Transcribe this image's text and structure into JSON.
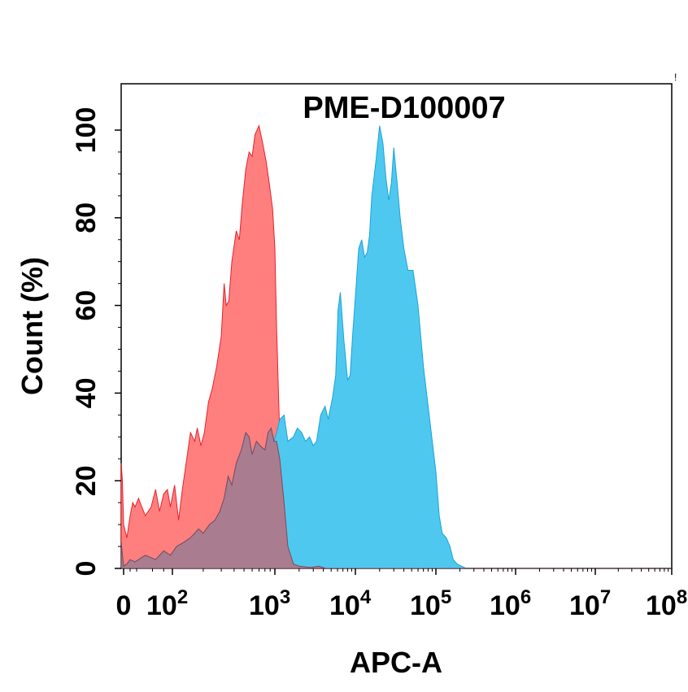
{
  "chart_data": {
    "type": "area",
    "title": "PME-D100007",
    "xlabel": "APC-A",
    "ylabel": "Count  (%)",
    "x_scale": "biexponential",
    "xlim": [
      -20,
      100000000
    ],
    "ylim": [
      0,
      100
    ],
    "x_ticks": [
      {
        "value": 0,
        "base": "0",
        "exp": ""
      },
      {
        "value": 100,
        "base": "10",
        "exp": "2"
      },
      {
        "value": 1000,
        "base": "10",
        "exp": "3"
      },
      {
        "value": 10000,
        "base": "10",
        "exp": "4"
      },
      {
        "value": 100000,
        "base": "10",
        "exp": "5"
      },
      {
        "value": 1000000,
        "base": "10",
        "exp": "6"
      },
      {
        "value": 10000000,
        "base": "10",
        "exp": "7"
      },
      {
        "value": 100000000,
        "base": "10",
        "exp": "8"
      }
    ],
    "y_ticks": [
      0,
      20,
      40,
      60,
      80,
      100
    ],
    "grid": false,
    "legend": "none",
    "series": [
      {
        "color": "#ff7f7f",
        "stroke": "#e8202a",
        "points": [
          [
            -20,
            24
          ],
          [
            -10,
            20
          ],
          [
            0,
            10
          ],
          [
            10,
            7
          ],
          [
            20,
            12
          ],
          [
            28,
            15
          ],
          [
            35,
            14
          ],
          [
            42,
            16
          ],
          [
            50,
            12
          ],
          [
            58,
            14
          ],
          [
            65,
            18
          ],
          [
            72,
            13
          ],
          [
            80,
            17
          ],
          [
            88,
            18
          ],
          [
            95,
            14
          ],
          [
            105,
            19
          ],
          [
            115,
            11
          ],
          [
            125,
            18
          ],
          [
            140,
            26
          ],
          [
            150,
            31
          ],
          [
            165,
            29
          ],
          [
            175,
            32
          ],
          [
            190,
            28
          ],
          [
            205,
            31
          ],
          [
            225,
            38
          ],
          [
            245,
            41
          ],
          [
            270,
            46
          ],
          [
            300,
            53
          ],
          [
            320,
            65
          ],
          [
            335,
            60
          ],
          [
            355,
            61
          ],
          [
            380,
            70
          ],
          [
            420,
            77
          ],
          [
            450,
            75
          ],
          [
            480,
            83
          ],
          [
            520,
            91
          ],
          [
            560,
            95
          ],
          [
            600,
            94
          ],
          [
            640,
            99
          ],
          [
            700,
            101
          ],
          [
            760,
            97
          ],
          [
            820,
            93
          ],
          [
            880,
            88
          ],
          [
            950,
            82
          ],
          [
            1000,
            73
          ],
          [
            1050,
            55
          ],
          [
            1150,
            30
          ],
          [
            1300,
            15
          ],
          [
            1450,
            5
          ],
          [
            1700,
            1
          ],
          [
            2000,
            0.5
          ],
          [
            2800,
            0.2
          ],
          [
            3500,
            1.2
          ],
          [
            4300,
            0
          ],
          [
            100000000,
            0
          ]
        ]
      },
      {
        "color": "#4fc8f0",
        "stroke": "#1aa3d8",
        "points": [
          [
            -20,
            6
          ],
          [
            -10,
            3
          ],
          [
            0,
            0.5
          ],
          [
            10,
            1
          ],
          [
            20,
            2
          ],
          [
            35,
            1.5
          ],
          [
            50,
            3
          ],
          [
            65,
            2
          ],
          [
            80,
            4
          ],
          [
            95,
            3
          ],
          [
            110,
            5
          ],
          [
            130,
            6
          ],
          [
            150,
            7
          ],
          [
            180,
            9
          ],
          [
            200,
            8
          ],
          [
            230,
            10
          ],
          [
            260,
            11
          ],
          [
            290,
            13
          ],
          [
            320,
            16
          ],
          [
            350,
            21
          ],
          [
            380,
            19
          ],
          [
            420,
            24
          ],
          [
            470,
            27
          ],
          [
            520,
            31
          ],
          [
            560,
            30
          ],
          [
            600,
            26
          ],
          [
            660,
            29
          ],
          [
            720,
            28
          ],
          [
            800,
            27
          ],
          [
            860,
            31
          ],
          [
            920,
            32
          ],
          [
            980,
            29
          ],
          [
            1050,
            31
          ],
          [
            1150,
            34
          ],
          [
            1300,
            35
          ],
          [
            1450,
            29
          ],
          [
            1700,
            30
          ],
          [
            1900,
            32
          ],
          [
            2150,
            31
          ],
          [
            2400,
            29
          ],
          [
            2700,
            30
          ],
          [
            3000,
            28
          ],
          [
            3300,
            29
          ],
          [
            3700,
            35
          ],
          [
            4200,
            37
          ],
          [
            4600,
            34
          ],
          [
            5200,
            39
          ],
          [
            5700,
            44
          ],
          [
            6100,
            59
          ],
          [
            6500,
            63
          ],
          [
            7200,
            52
          ],
          [
            8000,
            43
          ],
          [
            8600,
            44
          ],
          [
            9300,
            54
          ],
          [
            10000,
            62
          ],
          [
            11000,
            73
          ],
          [
            12000,
            75
          ],
          [
            13000,
            71
          ],
          [
            14000,
            72
          ],
          [
            15000,
            76
          ],
          [
            16000,
            85
          ],
          [
            18000,
            93
          ],
          [
            20000,
            101
          ],
          [
            22000,
            97
          ],
          [
            24000,
            89
          ],
          [
            26000,
            84
          ],
          [
            28000,
            88
          ],
          [
            30000,
            96
          ],
          [
            33000,
            88
          ],
          [
            36000,
            80
          ],
          [
            40000,
            73
          ],
          [
            45000,
            68
          ],
          [
            52000,
            68
          ],
          [
            60000,
            60
          ],
          [
            70000,
            46
          ],
          [
            85000,
            33
          ],
          [
            100000,
            22
          ],
          [
            110000,
            12
          ],
          [
            120000,
            8
          ],
          [
            135000,
            7
          ],
          [
            150000,
            5
          ],
          [
            165000,
            2
          ],
          [
            185000,
            1
          ],
          [
            210000,
            0.5
          ],
          [
            240000,
            0
          ],
          [
            100000000,
            0
          ]
        ]
      },
      {
        "color": "#b8707e",
        "stroke": "#7a4a58",
        "opacity": 0.85,
        "points": [
          [
            -20,
            6
          ],
          [
            -10,
            3
          ],
          [
            0,
            0.5
          ],
          [
            10,
            1
          ],
          [
            20,
            2
          ],
          [
            35,
            1.5
          ],
          [
            50,
            3
          ],
          [
            65,
            2
          ],
          [
            80,
            4
          ],
          [
            95,
            3
          ],
          [
            110,
            5
          ],
          [
            130,
            6
          ],
          [
            150,
            7
          ],
          [
            180,
            9
          ],
          [
            200,
            8
          ],
          [
            230,
            10
          ],
          [
            260,
            11
          ],
          [
            290,
            13
          ],
          [
            320,
            16
          ],
          [
            350,
            21
          ],
          [
            380,
            19
          ],
          [
            420,
            24
          ],
          [
            470,
            27
          ],
          [
            520,
            31
          ],
          [
            560,
            30
          ],
          [
            600,
            26
          ],
          [
            660,
            29
          ],
          [
            720,
            28
          ],
          [
            800,
            27
          ],
          [
            860,
            31
          ],
          [
            920,
            32
          ],
          [
            980,
            29
          ],
          [
            1000,
            29
          ],
          [
            1050,
            29
          ],
          [
            1150,
            25
          ],
          [
            1300,
            15
          ],
          [
            1450,
            5
          ],
          [
            1700,
            1
          ],
          [
            2000,
            0.5
          ],
          [
            2800,
            0.2
          ],
          [
            3500,
            0.5
          ],
          [
            4300,
            0
          ],
          [
            100000000,
            0
          ]
        ]
      }
    ]
  }
}
